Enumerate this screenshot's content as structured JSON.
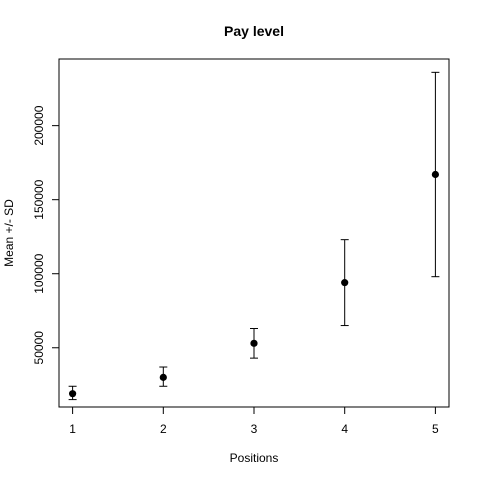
{
  "chart_data": {
    "type": "scatter",
    "title": "Pay level",
    "xlabel": "Positions",
    "ylabel": "Mean +/- SD",
    "x": [
      1,
      2,
      3,
      4,
      5
    ],
    "mean": [
      19000,
      30000,
      53000,
      94000,
      167000
    ],
    "sd_low": [
      15000,
      24000,
      43000,
      65000,
      98000
    ],
    "sd_high": [
      24000,
      37000,
      63000,
      123000,
      236000
    ],
    "x_ticks": [
      1,
      2,
      3,
      4,
      5
    ],
    "y_ticks": [
      50000,
      100000,
      150000,
      200000
    ],
    "xlim": [
      0.85,
      5.15
    ],
    "ylim": [
      10000,
      245000
    ],
    "grid": false,
    "marker": "filled circle",
    "colors": {
      "points": "#000000",
      "error_bars": "#000000",
      "frame": "#000000"
    }
  }
}
